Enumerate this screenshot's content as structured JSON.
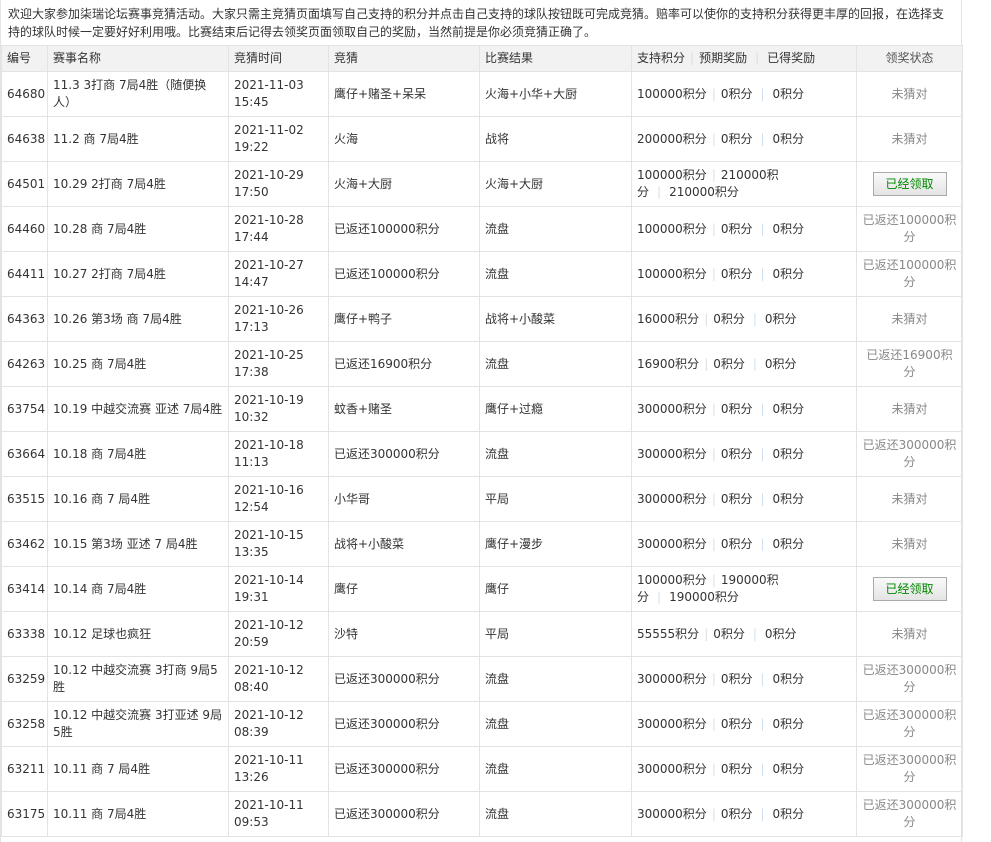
{
  "intro": "欢迎大家参加柒瑞论坛赛事竞猜活动。大家只需主竞猜页面填写自己支持的积分并点击自己支持的球队按钮既可完成竞猜。赔率可以使你的支持积分获得更丰厚的回报，在选择支持的球队时候一定要好好利用哦。比赛结束后记得去领奖页面领取自己的奖励，当然前提是你必须竞猜正确了。",
  "headers": {
    "id": "编号",
    "name": "赛事名称",
    "time": "竞猜时间",
    "guess": "竞猜",
    "result": "比赛结果",
    "support": "支持积分",
    "expected": "预期奖励",
    "earned": "已得奖励",
    "status": "领奖状态"
  },
  "rows": [
    {
      "id": "64680",
      "name": "11.3 3打商 7局4胜（随便换人）",
      "date": "2021-11-03",
      "clock": "15:45",
      "guess": "鹰仔+赌圣+呆呆",
      "result": "火海+小华+大厨",
      "support": "100000积分",
      "expected": "0积分",
      "earned": "0积分",
      "status": "未猜对"
    },
    {
      "id": "64638",
      "name": "11.2 商 7局4胜",
      "date": "2021-11-02",
      "clock": "19:22",
      "guess": "火海",
      "result": "战将",
      "support": "200000积分",
      "expected": "0积分",
      "earned": "0积分",
      "status": "未猜对"
    },
    {
      "id": "64501",
      "name": "10.29 2打商 7局4胜",
      "date": "2021-10-29",
      "clock": "17:50",
      "guess": "火海+大厨",
      "result": "火海+大厨",
      "support": "100000积分",
      "expected": "210000积分",
      "earned": "210000积分",
      "status": "已经领取",
      "button": true
    },
    {
      "id": "64460",
      "name": "10.28 商 7局4胜",
      "date": "2021-10-28",
      "clock": "17:44",
      "guess": "已返还100000积分",
      "result": "流盘",
      "support": "100000积分",
      "expected": "0积分",
      "earned": "0积分",
      "status": "已返还100000积分"
    },
    {
      "id": "64411",
      "name": "10.27 2打商 7局4胜",
      "date": "2021-10-27",
      "clock": "14:47",
      "guess": "已返还100000积分",
      "result": "流盘",
      "support": "100000积分",
      "expected": "0积分",
      "earned": "0积分",
      "status": "已返还100000积分"
    },
    {
      "id": "64363",
      "name": "10.26 第3场 商 7局4胜",
      "date": "2021-10-26",
      "clock": "17:13",
      "guess": "鹰仔+鸭子",
      "result": "战将+小酸菜",
      "support": "16000积分",
      "expected": "0积分",
      "earned": "0积分",
      "status": "未猜对"
    },
    {
      "id": "64263",
      "name": "10.25 商 7局4胜",
      "date": "2021-10-25",
      "clock": "17:38",
      "guess": "已返还16900积分",
      "result": "流盘",
      "support": "16900积分",
      "expected": "0积分",
      "earned": "0积分",
      "status": "已返还16900积分"
    },
    {
      "id": "63754",
      "name": "10.19 中越交流赛 亚述 7局4胜",
      "date": "2021-10-19",
      "clock": "10:32",
      "guess": "蚊香+赌圣",
      "result": "鹰仔+过瘾",
      "support": "300000积分",
      "expected": "0积分",
      "earned": "0积分",
      "status": "未猜对"
    },
    {
      "id": "63664",
      "name": "10.18 商 7局4胜",
      "date": "2021-10-18",
      "clock": "11:13",
      "guess": "已返还300000积分",
      "result": "流盘",
      "support": "300000积分",
      "expected": "0积分",
      "earned": "0积分",
      "status": "已返还300000积分"
    },
    {
      "id": "63515",
      "name": "10.16 商 7 局4胜",
      "date": "2021-10-16",
      "clock": "12:54",
      "guess": "小华哥",
      "result": "平局",
      "support": "300000积分",
      "expected": "0积分",
      "earned": "0积分",
      "status": "未猜对"
    },
    {
      "id": "63462",
      "name": "10.15 第3场 亚述 7 局4胜",
      "date": "2021-10-15",
      "clock": "13:35",
      "guess": "战将+小酸菜",
      "result": "鹰仔+漫步",
      "support": "300000积分",
      "expected": "0积分",
      "earned": "0积分",
      "status": "未猜对"
    },
    {
      "id": "63414",
      "name": "10.14 商 7局4胜",
      "date": "2021-10-14",
      "clock": "19:31",
      "guess": "鹰仔",
      "result": "鹰仔",
      "support": "100000积分",
      "expected": "190000积分",
      "earned": "190000积分",
      "status": "已经领取",
      "button": true
    },
    {
      "id": "63338",
      "name": "10.12 足球也疯狂",
      "date": "2021-10-12",
      "clock": "20:59",
      "guess": "沙特",
      "result": "平局",
      "support": "55555积分",
      "expected": "0积分",
      "earned": "0积分",
      "status": "未猜对"
    },
    {
      "id": "63259",
      "name": "10.12 中越交流赛 3打商 9局5胜",
      "date": "2021-10-12",
      "clock": "08:40",
      "guess": "已返还300000积分",
      "result": "流盘",
      "support": "300000积分",
      "expected": "0积分",
      "earned": "0积分",
      "status": "已返还300000积分"
    },
    {
      "id": "63258",
      "name": "10.12 中越交流赛 3打亚述 9局5胜",
      "date": "2021-10-12",
      "clock": "08:39",
      "guess": "已返还300000积分",
      "result": "流盘",
      "support": "300000积分",
      "expected": "0积分",
      "earned": "0积分",
      "status": "已返还300000积分"
    },
    {
      "id": "63211",
      "name": "10.11 商 7 局4胜",
      "date": "2021-10-11",
      "clock": "13:26",
      "guess": "已返还300000积分",
      "result": "流盘",
      "support": "300000积分",
      "expected": "0积分",
      "earned": "0积分",
      "status": "已返还300000积分"
    },
    {
      "id": "63175",
      "name": "10.11 商 7局4胜",
      "date": "2021-10-11",
      "clock": "09:53",
      "guess": "已返还300000积分",
      "result": "流盘",
      "support": "300000积分",
      "expected": "0积分",
      "earned": "0积分",
      "status": "已返还300000积分"
    }
  ]
}
